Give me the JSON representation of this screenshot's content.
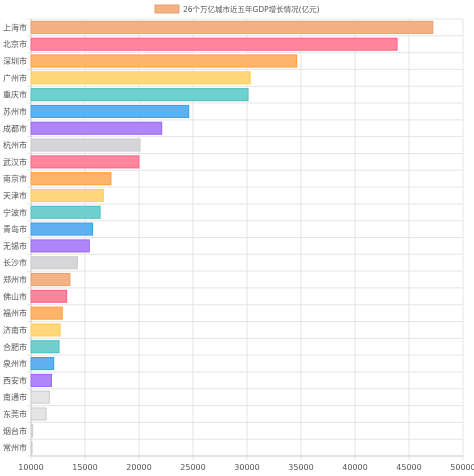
{
  "chart_data": {
    "type": "bar",
    "orientation": "horizontal",
    "title": "",
    "legend": {
      "label": "26个万亿城市近五年GDP增长情况(亿元)",
      "position": "top"
    },
    "categories": [
      "上海市",
      "北京市",
      "深圳市",
      "广州市",
      "重庆市",
      "苏州市",
      "成都市",
      "杭州市",
      "武汉市",
      "南京市",
      "天津市",
      "宁波市",
      "青岛市",
      "无锡市",
      "长沙市",
      "郑州市",
      "佛山市",
      "福州市",
      "济南市",
      "合肥市",
      "泉州市",
      "西安市",
      "南通市",
      "东莞市",
      "烟台市",
      "常州市"
    ],
    "series": [
      {
        "name": "26个万亿城市近五年GDP增长情况(亿元)",
        "values": [
          47200,
          43900,
          34600,
          30300,
          30100,
          24600,
          22100,
          20100,
          20000,
          17400,
          16700,
          16400,
          15700,
          15400,
          14300,
          13600,
          13300,
          12900,
          12700,
          12600,
          12100,
          11900,
          11700,
          11400,
          10150,
          10100
        ]
      }
    ],
    "bar_colors": [
      "#f4b183",
      "#ff859e",
      "#ffb36b",
      "#ffd67a",
      "#70cfcf",
      "#5eb1ee",
      "#ae86f7",
      "#d6d6d8",
      "#ff859e",
      "#ffb36b",
      "#ffd67a",
      "#70cfcf",
      "#5eb1ee",
      "#ae86f7",
      "#d6d6d8",
      "#f4b183",
      "#ff859e",
      "#ffb36b",
      "#ffd67a",
      "#70cfcf",
      "#5eb1ee",
      "#ae86f7",
      "#e4e4e4",
      "#e4e4e4",
      "#d6d6d8",
      "#d6d6d8"
    ],
    "bar_borders": [
      "#e8a06e",
      "#ff6384",
      "#ff9f40",
      "#ffcd56",
      "#4bc0c0",
      "#36a2eb",
      "#9966ff",
      "#c9cbcf",
      "#ff6384",
      "#ff9f40",
      "#ffcd56",
      "#4bc0c0",
      "#36a2eb",
      "#9966ff",
      "#c9cbcf",
      "#e8a06e",
      "#ff6384",
      "#ff9f40",
      "#ffcd56",
      "#4bc0c0",
      "#36a2eb",
      "#9966ff",
      "#c9cbcf",
      "#c9cbcf",
      "#c9cbcf",
      "#c9cbcf"
    ],
    "xlim": [
      10000,
      50000
    ],
    "x_ticks": [
      10000,
      15000,
      20000,
      25000,
      30000,
      35000,
      40000,
      45000,
      50000
    ],
    "grid": true
  }
}
